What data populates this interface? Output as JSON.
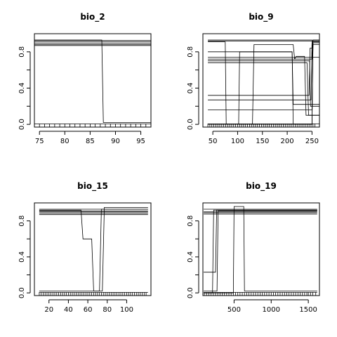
{
  "chart_data": [
    {
      "type": "line",
      "title": "bio_2",
      "xlim": [
        74,
        97
      ],
      "ylim": [
        -0.03,
        1.0
      ],
      "xticks": [
        75,
        80,
        85,
        90,
        95
      ],
      "yticks": [
        0.0,
        0.4,
        0.8
      ],
      "series": [
        {
          "x": [
            74,
            87.3,
            87.6,
            97
          ],
          "y": [
            0.93,
            0.93,
            0.02,
            0.02
          ]
        },
        {
          "x": [
            74,
            97
          ],
          "y": [
            0.925,
            0.925
          ]
        },
        {
          "x": [
            74,
            97
          ],
          "y": [
            0.91,
            0.91
          ]
        },
        {
          "x": [
            74,
            97
          ],
          "y": [
            0.895,
            0.895
          ]
        },
        {
          "x": [
            74,
            97
          ],
          "y": [
            0.88,
            0.88
          ]
        },
        {
          "x": [
            74,
            97
          ],
          "y": [
            0.87,
            0.87
          ]
        },
        {
          "x": [
            74,
            97
          ],
          "y": [
            0.005,
            0.005
          ]
        }
      ],
      "rug": [
        75,
        76,
        77,
        78,
        79,
        80,
        81,
        82,
        83,
        84,
        85,
        86,
        87,
        88,
        89,
        90,
        91,
        92,
        93,
        94,
        95,
        96
      ]
    },
    {
      "type": "line",
      "title": "bio_9",
      "xlim": [
        30,
        265
      ],
      "ylim": [
        -0.03,
        1.0
      ],
      "xticks": [
        50,
        100,
        150,
        200,
        250
      ],
      "yticks": [
        0.0,
        0.4,
        0.8
      ],
      "series": [
        {
          "x": [
            40,
            250,
            252,
            265
          ],
          "y": [
            0.93,
            0.93,
            0.92,
            0.92
          ]
        },
        {
          "x": [
            40,
            250,
            252,
            265
          ],
          "y": [
            0.92,
            0.92,
            0.9,
            0.9
          ]
        },
        {
          "x": [
            40,
            75,
            77,
            103,
            105,
            250,
            252,
            265
          ],
          "y": [
            0.91,
            0.91,
            0.0,
            0.0,
            0.0,
            0.0,
            0.88,
            0.88
          ]
        },
        {
          "x": [
            40,
            102,
            104,
            210,
            212,
            250,
            252,
            265
          ],
          "y": [
            0.0,
            0.0,
            0.8,
            0.8,
            0.0,
            0.0,
            0.9,
            0.9
          ]
        },
        {
          "x": [
            40,
            130,
            133,
            212,
            215,
            250,
            252,
            265
          ],
          "y": [
            0.0,
            0.0,
            0.88,
            0.88,
            0.72,
            0.72,
            0.93,
            0.93
          ]
        },
        {
          "x": [
            40,
            210,
            212,
            265
          ],
          "y": [
            0.8,
            0.8,
            0.22,
            0.22
          ]
        },
        {
          "x": [
            40,
            205,
            208,
            265
          ],
          "y": [
            0.74,
            0.74,
            0.74,
            0.74
          ]
        },
        {
          "x": [
            40,
            215,
            218,
            235,
            238,
            265
          ],
          "y": [
            0.72,
            0.72,
            0.75,
            0.75,
            0.1,
            0.1
          ]
        },
        {
          "x": [
            40,
            245,
            247,
            265
          ],
          "y": [
            0.7,
            0.7,
            0.2,
            0.2
          ]
        },
        {
          "x": [
            40,
            240,
            243,
            265
          ],
          "y": [
            0.68,
            0.68,
            0.1,
            0.1
          ]
        },
        {
          "x": [
            40,
            244,
            246,
            250,
            252,
            265
          ],
          "y": [
            0.32,
            0.32,
            0.84,
            0.84,
            0.93,
            0.93
          ]
        },
        {
          "x": [
            40,
            248,
            250,
            265
          ],
          "y": [
            0.27,
            0.27,
            0.91,
            0.91
          ]
        },
        {
          "x": [
            40,
            250,
            252,
            265
          ],
          "y": [
            0.16,
            0.16,
            0.9,
            0.9
          ]
        },
        {
          "x": [
            40,
            265
          ],
          "y": [
            0.005,
            0.005
          ]
        }
      ],
      "rug": [
        40,
        44,
        48,
        52,
        56,
        60,
        64,
        68,
        72,
        76,
        80,
        84,
        88,
        92,
        96,
        100,
        104,
        108,
        112,
        116,
        120,
        124,
        128,
        132,
        136,
        140,
        144,
        148,
        152,
        156,
        160,
        164,
        168,
        172,
        176,
        180,
        184,
        188,
        192,
        196,
        200,
        204,
        208,
        212,
        216,
        220,
        224,
        228,
        232,
        236,
        240,
        244,
        248,
        252,
        256
      ]
    },
    {
      "type": "line",
      "title": "bio_15",
      "xlim": [
        5,
        125
      ],
      "ylim": [
        -0.03,
        1.0
      ],
      "xticks": [
        20,
        40,
        60,
        80,
        100
      ],
      "yticks": [
        0.0,
        0.4,
        0.8
      ],
      "series": [
        {
          "x": [
            10,
            53,
            55,
            64,
            66,
            75,
            77,
            122
          ],
          "y": [
            0.92,
            0.92,
            0.6,
            0.6,
            0.02,
            0.02,
            0.95,
            0.95
          ]
        },
        {
          "x": [
            10,
            53,
            56,
            122
          ],
          "y": [
            0.91,
            0.91,
            0.91,
            0.91
          ]
        },
        {
          "x": [
            10,
            122
          ],
          "y": [
            0.9,
            0.9
          ]
        },
        {
          "x": [
            10,
            74,
            76,
            122
          ],
          "y": [
            0.93,
            0.93,
            0.93,
            0.93
          ]
        },
        {
          "x": [
            10,
            122
          ],
          "y": [
            0.885,
            0.885
          ]
        },
        {
          "x": [
            10,
            122
          ],
          "y": [
            0.87,
            0.87
          ]
        },
        {
          "x": [
            10,
            53,
            55,
            72,
            74,
            122
          ],
          "y": [
            0.02,
            0.02,
            0.02,
            0.02,
            0.93,
            0.93
          ]
        },
        {
          "x": [
            10,
            122
          ],
          "y": [
            0.005,
            0.005
          ]
        }
      ],
      "rug": [
        10,
        12,
        14,
        16,
        18,
        20,
        22,
        24,
        26,
        28,
        30,
        32,
        34,
        36,
        38,
        40,
        42,
        44,
        46,
        48,
        50,
        52,
        54,
        56,
        58,
        60,
        62,
        64,
        66,
        68,
        70,
        72,
        74,
        76,
        78,
        80,
        82,
        84,
        86,
        88,
        90,
        92,
        94,
        96,
        98,
        100,
        102,
        104,
        106,
        108,
        110,
        112,
        114,
        116,
        118,
        120
      ]
    },
    {
      "type": "line",
      "title": "bio_19",
      "xlim": [
        80,
        1650
      ],
      "ylim": [
        -0.03,
        1.0
      ],
      "xticks": [
        500,
        1000,
        1500
      ],
      "yticks": [
        0.0,
        0.4,
        0.8
      ],
      "series": [
        {
          "x": [
            90,
            1620
          ],
          "y": [
            0.93,
            0.93
          ]
        },
        {
          "x": [
            90,
            210,
            225,
            1620
          ],
          "y": [
            0.0,
            0.0,
            0.92,
            0.92
          ]
        },
        {
          "x": [
            90,
            250,
            265,
            1620
          ],
          "y": [
            0.23,
            0.23,
            0.92,
            0.92
          ]
        },
        {
          "x": [
            90,
            270,
            285,
            1620
          ],
          "y": [
            0.02,
            0.02,
            0.91,
            0.91
          ]
        },
        {
          "x": [
            90,
            490,
            500,
            630,
            640,
            1620
          ],
          "y": [
            0.0,
            0.0,
            0.96,
            0.96,
            0.02,
            0.02
          ]
        },
        {
          "x": [
            90,
            1620
          ],
          "y": [
            0.9,
            0.9
          ]
        },
        {
          "x": [
            90,
            1620
          ],
          "y": [
            0.89,
            0.89
          ]
        },
        {
          "x": [
            90,
            1620
          ],
          "y": [
            0.875,
            0.875
          ]
        },
        {
          "x": [
            90,
            1620
          ],
          "y": [
            0.005,
            0.005
          ]
        }
      ],
      "rug": [
        100,
        130,
        160,
        190,
        220,
        250,
        280,
        310,
        340,
        370,
        400,
        430,
        460,
        490,
        520,
        550,
        580,
        610,
        640,
        670,
        700,
        730,
        760,
        790,
        820,
        850,
        880,
        910,
        940,
        970,
        1000,
        1030,
        1060,
        1090,
        1120,
        1150,
        1180,
        1210,
        1240,
        1270,
        1300,
        1330,
        1360,
        1390,
        1420,
        1450,
        1480,
        1500,
        1530,
        1560,
        1600
      ]
    }
  ]
}
